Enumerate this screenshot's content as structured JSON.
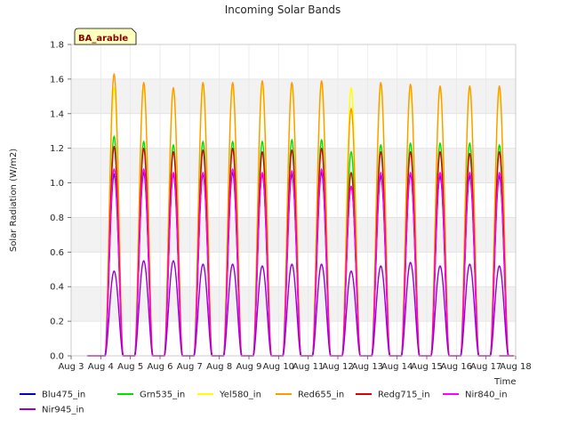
{
  "chart_data": {
    "type": "line",
    "title": "Incoming Solar Bands",
    "xlabel": "Time",
    "ylabel": "Solar Radiation (W/m2)",
    "site_label": "BA_arable",
    "xlim": [
      "Aug 3",
      "Aug 18"
    ],
    "ylim": [
      0.0,
      1.8
    ],
    "x_tick_labels": [
      "Aug 3",
      "Aug 4",
      "Aug 5",
      "Aug 6",
      "Aug 7",
      "Aug 8",
      "Aug 9",
      "Aug 10",
      "Aug 11",
      "Aug 12",
      "Aug 13",
      "Aug 14",
      "Aug 15",
      "Aug 16",
      "Aug 17",
      "Aug 18"
    ],
    "y_tick_labels": [
      "0.0",
      "0.2",
      "0.4",
      "0.6",
      "0.8",
      "1.0",
      "1.2",
      "1.4",
      "1.6",
      "1.8"
    ],
    "y_ticks": [
      0.0,
      0.2,
      0.4,
      0.6,
      0.8,
      1.0,
      1.2,
      1.4,
      1.6,
      1.8
    ],
    "background_bands": true,
    "grid": true,
    "legend_position": "bottom-left, below plot",
    "days": [
      "Aug 4",
      "Aug 5",
      "Aug 6",
      "Aug 7",
      "Aug 8",
      "Aug 9",
      "Aug 10",
      "Aug 11",
      "Aug 12",
      "Aug 13",
      "Aug 14",
      "Aug 15",
      "Aug 16",
      "Aug 17"
    ],
    "series": [
      {
        "name": "Blu475_in",
        "color": "#0000cc",
        "daily_peaks": [
          1.05,
          1.06,
          1.05,
          1.05,
          1.06,
          1.05,
          1.05,
          1.06,
          0.98,
          1.04,
          1.05,
          1.04,
          1.04,
          1.04
        ]
      },
      {
        "name": "Grn535_in",
        "color": "#00e000",
        "daily_peaks": [
          1.27,
          1.24,
          1.22,
          1.24,
          1.24,
          1.24,
          1.25,
          1.25,
          1.18,
          1.22,
          1.23,
          1.23,
          1.23,
          1.22
        ]
      },
      {
        "name": "Yel580_in",
        "color": "#ffff00",
        "daily_peaks": [
          1.55,
          1.55,
          1.53,
          1.55,
          1.55,
          1.55,
          1.55,
          1.56,
          1.55,
          1.55,
          1.54,
          1.54,
          1.54,
          1.53
        ]
      },
      {
        "name": "Red655_in",
        "color": "#ff9900",
        "daily_peaks": [
          1.63,
          1.58,
          1.55,
          1.58,
          1.58,
          1.59,
          1.58,
          1.59,
          1.43,
          1.58,
          1.57,
          1.56,
          1.56,
          1.56
        ]
      },
      {
        "name": "Redg715_in",
        "color": "#dd0000",
        "daily_peaks": [
          1.21,
          1.2,
          1.18,
          1.19,
          1.2,
          1.18,
          1.19,
          1.2,
          1.06,
          1.18,
          1.18,
          1.18,
          1.17,
          1.18
        ]
      },
      {
        "name": "Nir840_in",
        "color": "#ff00ff",
        "daily_peaks": [
          1.08,
          1.08,
          1.06,
          1.06,
          1.08,
          1.06,
          1.07,
          1.08,
          0.98,
          1.06,
          1.06,
          1.06,
          1.06,
          1.06
        ]
      },
      {
        "name": "Nir945_in",
        "color": "#9900cc",
        "daily_peaks": [
          0.49,
          0.55,
          0.55,
          0.53,
          0.53,
          0.52,
          0.53,
          0.53,
          0.49,
          0.52,
          0.54,
          0.52,
          0.53,
          0.52
        ]
      }
    ]
  }
}
